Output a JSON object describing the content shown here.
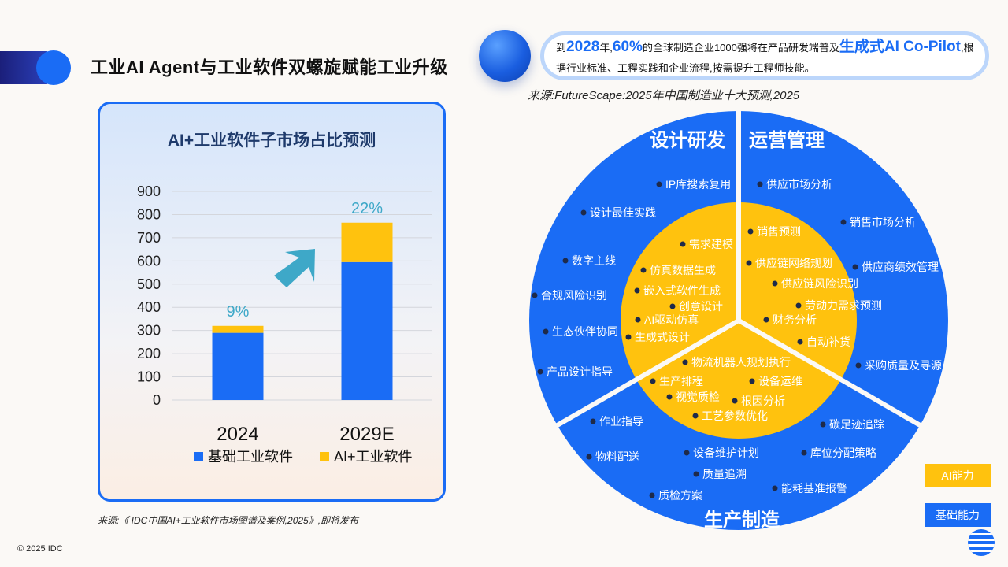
{
  "slide": {
    "title": "工业AI Agent与工业软件双螺旋赋能工业升级",
    "copyright": "© 2025 IDC",
    "source_left": "来源:《 IDC中国AI+工业软件市场图谱及案例,2025》,即将发布",
    "source_right": "来源:FutureScape:2025年中国制造业十大预测,2025"
  },
  "callout": {
    "p1": "到",
    "year": "2028",
    "p2": "年,",
    "pct": "60%",
    "p3": "的全球制造企业1000强将在产品研发端普及",
    "hl": "生成式AI Co-Pilot",
    "p4": ",根据行业标准、工程实践和企业流程,按需提升工程师技能。"
  },
  "chart_data": {
    "type": "bar",
    "stacked": true,
    "title": "AI+工业软件子市场占比预测",
    "categories": [
      "2024",
      "2029E"
    ],
    "series": [
      {
        "name": "基础工业软件",
        "values": [
          290,
          595
        ],
        "color": "#1a6cf5"
      },
      {
        "name": "AI+工业软件",
        "values": [
          30,
          170
        ],
        "color": "#ffc20e"
      }
    ],
    "data_labels": [
      "9%",
      "22%"
    ],
    "yticks": [
      "0",
      "100",
      "200",
      "300",
      "400",
      "500",
      "600",
      "700",
      "800",
      "900"
    ],
    "ylim": [
      0,
      900
    ],
    "grid": true,
    "legend": "bottom"
  },
  "wheel": {
    "sectors": [
      {
        "name": "设计研发",
        "items": [
          "IP库搜索复用",
          "设计最佳实践",
          "数字主线",
          "合规风险识别",
          "生态伙伴协同",
          "产品设计指导"
        ]
      },
      {
        "name": "运营管理",
        "items": [
          "供应市场分析",
          "销售市场分析",
          "供应商绩效管理",
          "采购质量及寻源"
        ]
      },
      {
        "name": "生产制造",
        "items": [
          "作业指导",
          "物料配送",
          "设备维护计划",
          "质量追溯",
          "质检方案",
          "碳足迹追踪",
          "库位分配策略",
          "能耗基准报警"
        ]
      }
    ],
    "inner": {
      "design": [
        "需求建模",
        "仿真数据生成",
        "嵌入式软件生成",
        "创意设计",
        "AI驱动仿真",
        "生成式设计"
      ],
      "ops": [
        "销售预测",
        "供应链网络规划",
        "供应链风险识别",
        "劳动力需求预测",
        "财务分析",
        "自动补货"
      ],
      "prod": [
        "物流机器人规划执行",
        "生产排程",
        "设备运维",
        "视觉质检",
        "根因分析",
        "工艺参数优化"
      ]
    },
    "colors": {
      "base": "#1a6cf5",
      "ai": "#ffc20e"
    }
  },
  "legend": {
    "ai": "AI能力",
    "base": "基础能力"
  }
}
